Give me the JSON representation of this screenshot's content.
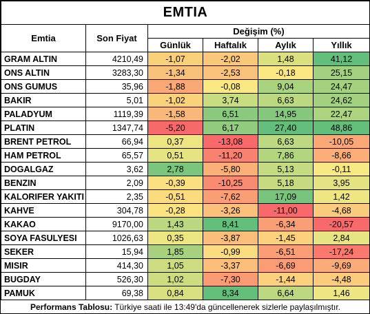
{
  "title": "EMTIA",
  "headers": {
    "emtia": "Emtia",
    "son_fiyat": "Son Fiyat",
    "degisim": "Değişim (%)",
    "gunluk": "Günlük",
    "haftalik": "Haftalık",
    "aylik": "Aylık",
    "yillik": "Yıllık"
  },
  "rows": [
    {
      "name": "GRAM ALTIN",
      "price": "4210,49",
      "g": "-1,07",
      "h": "-2,02",
      "a": "1,48",
      "y": "41,12",
      "gc": "#f9d07a",
      "hc": "#f9c87b",
      "ac": "#dbe07e",
      "yc": "#63be7b"
    },
    {
      "name": "ONS ALTIN",
      "price": "3283,30",
      "g": "-1,34",
      "h": "-2,53",
      "a": "-0,18",
      "y": "25,15",
      "gc": "#f9c27a",
      "hc": "#f9c37b",
      "ac": "#fce882",
      "yc": "#a2d07f"
    },
    {
      "name": "ONS GUMUS",
      "price": "35,96",
      "g": "-1,88",
      "h": "-0,08",
      "a": "9,04",
      "y": "24,47",
      "gc": "#f8a976",
      "hc": "#fae882",
      "ac": "#aad380",
      "yc": "#a5d17f"
    },
    {
      "name": "BAKIR",
      "price": "5,01",
      "g": "-1,02",
      "h": "3,74",
      "a": "6,63",
      "y": "24,62",
      "gc": "#f9d27b",
      "hc": "#c8dc81",
      "ac": "#bcd881",
      "yc": "#a4d17f"
    },
    {
      "name": "PALADYUM",
      "price": "1119,39",
      "g": "-1,58",
      "h": "6,51",
      "a": "14,95",
      "y": "22,47",
      "gc": "#f9b879",
      "hc": "#8bc97e",
      "ac": "#85c87d",
      "yc": "#acd380"
    },
    {
      "name": "PLATIN",
      "price": "1347,74",
      "g": "-5,20",
      "h": "6,17",
      "a": "27,40",
      "y": "48,86",
      "gc": "#f8696b",
      "hc": "#93cb7e",
      "ac": "#63be7b",
      "yc": "#63be7b"
    },
    {
      "name": "BRENT PETROL",
      "price": "66,94",
      "g": "0,37",
      "h": "-13,08",
      "a": "6,63",
      "y": "-10,05",
      "gc": "#ece582",
      "hc": "#f8696b",
      "ac": "#bcd881",
      "yc": "#fba877"
    },
    {
      "name": "HAM PETROL",
      "price": "65,57",
      "g": "0,51",
      "h": "-11,20",
      "a": "7,86",
      "y": "-8,66",
      "gc": "#e5e382",
      "hc": "#f98170",
      "ac": "#b3d580",
      "yc": "#fbae78"
    },
    {
      "name": "DOGALGAZ",
      "price": "3,62",
      "g": "2,78",
      "h": "-5,80",
      "a": "5,13",
      "y": "-0,11",
      "gc": "#7cc57d",
      "hc": "#fbb078",
      "ac": "#c6db81",
      "yc": "#f8e883"
    },
    {
      "name": "BENZIN",
      "price": "2,09",
      "g": "-0,39",
      "h": "-10,25",
      "a": "5,18",
      "y": "3,95",
      "gc": "#fbe07f",
      "hc": "#f98b72",
      "ac": "#c6db81",
      "yc": "#e4e383"
    },
    {
      "name": "KALORIFER YAKITI",
      "price": "2,35",
      "g": "-0,51",
      "h": "-7,62",
      "a": "17,09",
      "y": "1,42",
      "gc": "#fadb7e",
      "hc": "#fa9e75",
      "ac": "#79c47c",
      "yc": "#eee683"
    },
    {
      "name": "KAHVE",
      "price": "304,78",
      "g": "-0,28",
      "h": "-3,26",
      "a": "-11,00",
      "y": "-4,68",
      "gc": "#fbe380",
      "hc": "#fbc07b",
      "ac": "#f8696b",
      "yc": "#fbcb7d"
    },
    {
      "name": "KAKAO",
      "price": "9170,00",
      "g": "1,43",
      "h": "8,41",
      "a": "-6,34",
      "y": "-20,57",
      "gc": "#bbd780",
      "hc": "#63be7b",
      "ac": "#fa9f75",
      "yc": "#f8696b"
    },
    {
      "name": "SOYA FASULYESI",
      "price": "1026,63",
      "g": "0,35",
      "h": "-3,87",
      "a": "-1,45",
      "y": "2,84",
      "gc": "#ede582",
      "hc": "#fbbd7a",
      "ac": "#fcd17e",
      "yc": "#e7e483"
    },
    {
      "name": "SEKER",
      "price": "15,94",
      "g": "1,85",
      "h": "-0,99",
      "a": "-6,51",
      "y": "-17,24",
      "gc": "#a7d17f",
      "hc": "#fcdc80",
      "ac": "#fa9e75",
      "yc": "#f9796e"
    },
    {
      "name": "MISIR",
      "price": "414,30",
      "g": "1,05",
      "h": "-3,37",
      "a": "-6,69",
      "y": "-9,69",
      "gc": "#cddc81",
      "hc": "#fbbf7b",
      "ac": "#fa9c75",
      "yc": "#fbab78"
    },
    {
      "name": "BUGDAY",
      "price": "526,30",
      "g": "1,02",
      "h": "-7,30",
      "a": "-1,44",
      "y": "-4,48",
      "gc": "#cedc81",
      "hc": "#fa9b74",
      "ac": "#fcd17e",
      "yc": "#fbcc7d"
    },
    {
      "name": "PAMUK",
      "price": "69,38",
      "g": "0,84",
      "h": "8,34",
      "a": "6,64",
      "y": "1,46",
      "gc": "#d8df81",
      "hc": "#63be7b",
      "ac": "#bcd881",
      "yc": "#eee683"
    }
  ],
  "footer": {
    "label": "Performans Tablosu:",
    "text": " Türkiye saati ile 13:49'da güncellenerek sizlerle paylaşılmıştır."
  }
}
